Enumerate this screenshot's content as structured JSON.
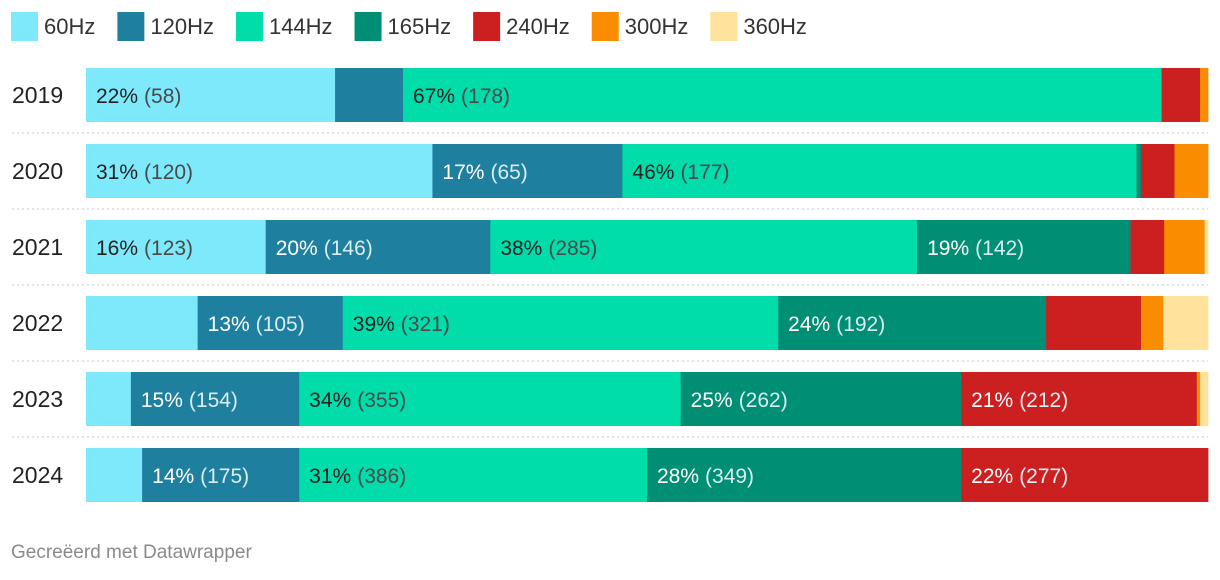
{
  "footer": "Gecreëerd met Datawrapper",
  "chart_data": {
    "type": "bar",
    "orientation": "horizontal",
    "stacked": true,
    "normalized": true,
    "legend_position": "top",
    "categories": [
      "2019",
      "2020",
      "2021",
      "2022",
      "2023",
      "2024"
    ],
    "series": [
      {
        "name": "60Hz",
        "color": "#7de9fb",
        "values": [
          22,
          31,
          16,
          10,
          4,
          5
        ]
      },
      {
        "name": "120Hz",
        "color": "#1f7f9f",
        "values": [
          6,
          17,
          20,
          13,
          15,
          14
        ]
      },
      {
        "name": "144Hz",
        "color": "#00dcaa",
        "values": [
          67,
          46,
          38,
          39,
          34,
          31
        ]
      },
      {
        "name": "165Hz",
        "color": "#008f74",
        "values": [
          0,
          0.4,
          19,
          24,
          25,
          28
        ]
      },
      {
        "name": "240Hz",
        "color": "#cc2020",
        "values": [
          3.4,
          3,
          3,
          8.5,
          21,
          22
        ]
      },
      {
        "name": "300Hz",
        "color": "#fa8c00",
        "values": [
          0.7,
          3,
          3.6,
          2,
          0.3,
          0
        ]
      },
      {
        "name": "360Hz",
        "color": "#ffe39d",
        "values": [
          0,
          0,
          0.3,
          4,
          0.7,
          0
        ]
      }
    ],
    "data_labels": [
      [
        {
          "series": 0,
          "pct": "22%",
          "count": "(58)"
        },
        {
          "series": 2,
          "pct": "67%",
          "count": "(178)"
        }
      ],
      [
        {
          "series": 0,
          "pct": "31%",
          "count": "(120)"
        },
        {
          "series": 1,
          "pct": "17%",
          "count": "(65)"
        },
        {
          "series": 2,
          "pct": "46%",
          "count": "(177)"
        }
      ],
      [
        {
          "series": 0,
          "pct": "16%",
          "count": "(123)"
        },
        {
          "series": 1,
          "pct": "20%",
          "count": "(146)"
        },
        {
          "series": 2,
          "pct": "38%",
          "count": "(285)"
        },
        {
          "series": 3,
          "pct": "19%",
          "count": "(142)"
        }
      ],
      [
        {
          "series": 1,
          "pct": "13%",
          "count": "(105)"
        },
        {
          "series": 2,
          "pct": "39%",
          "count": "(321)"
        },
        {
          "series": 3,
          "pct": "24%",
          "count": "(192)"
        }
      ],
      [
        {
          "series": 1,
          "pct": "15%",
          "count": "(154)"
        },
        {
          "series": 2,
          "pct": "34%",
          "count": "(355)"
        },
        {
          "series": 3,
          "pct": "25%",
          "count": "(262)"
        },
        {
          "series": 4,
          "pct": "21%",
          "count": "(212)"
        }
      ],
      [
        {
          "series": 1,
          "pct": "14%",
          "count": "(175)"
        },
        {
          "series": 2,
          "pct": "31%",
          "count": "(386)"
        },
        {
          "series": 3,
          "pct": "28%",
          "count": "(349)"
        },
        {
          "series": 4,
          "pct": "22%",
          "count": "(277)"
        }
      ]
    ]
  }
}
